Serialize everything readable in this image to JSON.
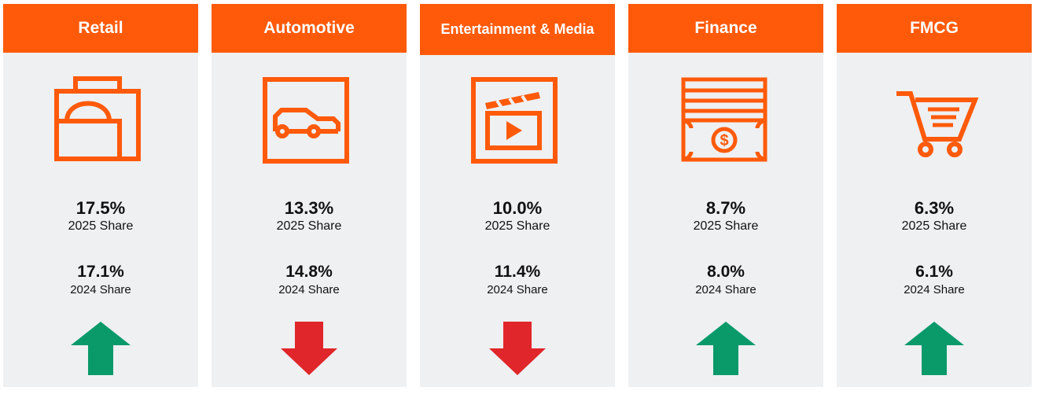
{
  "colors": {
    "header": "#ff5a0a",
    "card_bg": "#eef0f2",
    "up": "#0a9a6a",
    "down": "#e0262a"
  },
  "sectors": [
    {
      "name": "Retail",
      "icon": "shopping-bag-icon",
      "share_2025": "17.5%",
      "label_2025": "2025 Share",
      "share_2024": "17.1%",
      "label_2024": "2024 Share",
      "trend": "up"
    },
    {
      "name": "Automotive",
      "icon": "car-icon",
      "share_2025": "13.3%",
      "label_2025": "2025 Share",
      "share_2024": "14.8%",
      "label_2024": "2024 Share",
      "trend": "down"
    },
    {
      "name": "Entertainment & Media",
      "icon": "clapperboard-icon",
      "share_2025": "10.0%",
      "label_2025": "2025 Share",
      "share_2024": "11.4%",
      "label_2024": "2024 Share",
      "trend": "down"
    },
    {
      "name": "Finance",
      "icon": "banknote-icon",
      "share_2025": "8.7%",
      "label_2025": "2025 Share",
      "share_2024": "8.0%",
      "label_2024": "2024 Share",
      "trend": "up"
    },
    {
      "name": "FMCG",
      "icon": "shopping-cart-icon",
      "share_2025": "6.3%",
      "label_2025": "2025 Share",
      "share_2024": "6.1%",
      "label_2024": "2024 Share",
      "trend": "up"
    }
  ]
}
